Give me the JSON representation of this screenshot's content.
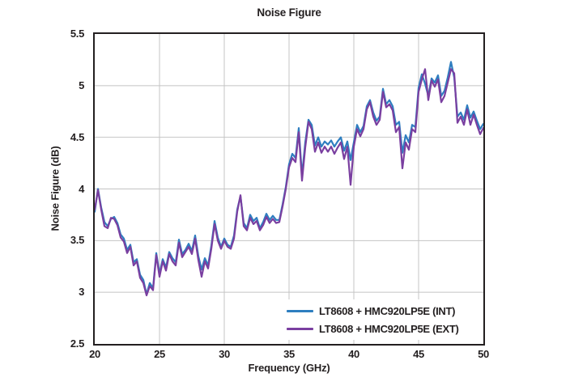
{
  "title": "Noise Figure",
  "colors": {
    "frame": "#231f20",
    "grid": "#c4c4c4",
    "text": "#231f20",
    "background": "#ffffff",
    "series_int": "#2e7ec0",
    "series_ext": "#7a3fa0"
  },
  "chart_data": {
    "type": "line",
    "title": "Noise Figure",
    "xlabel": "Frequency (GHz)",
    "ylabel": "Noise Figure (dB)",
    "xlim": [
      20,
      50
    ],
    "ylim": [
      2.5,
      5.5
    ],
    "xticks": [
      20,
      25,
      30,
      35,
      40,
      45,
      50
    ],
    "xtick_labels": [
      "20",
      "25",
      "30",
      "35",
      "40",
      "45",
      "50"
    ],
    "yticks": [
      2.5,
      3,
      3.5,
      4,
      4.5,
      5,
      5.5
    ],
    "ytick_labels": [
      "2.5",
      "3",
      "3.5",
      "4",
      "4.5",
      "5",
      "5.5"
    ],
    "grid": true,
    "legend_position": "bottom-right",
    "x_start": 20,
    "x_step": 0.25,
    "x_end": 50,
    "series": [
      {
        "name": "LT8608 + HMC920LP5E (INT)",
        "color": "#2e7ec0",
        "values": [
          3.78,
          4.0,
          3.82,
          3.68,
          3.64,
          3.71,
          3.73,
          3.67,
          3.56,
          3.52,
          3.41,
          3.46,
          3.29,
          3.32,
          3.17,
          3.12,
          2.98,
          3.09,
          3.04,
          3.38,
          3.18,
          3.32,
          3.24,
          3.39,
          3.33,
          3.29,
          3.51,
          3.37,
          3.41,
          3.47,
          3.4,
          3.55,
          3.35,
          3.22,
          3.33,
          3.26,
          3.45,
          3.69,
          3.53,
          3.44,
          3.52,
          3.46,
          3.44,
          3.55,
          3.8,
          3.93,
          3.67,
          3.62,
          3.75,
          3.69,
          3.72,
          3.62,
          3.68,
          3.76,
          3.7,
          3.74,
          3.7,
          3.7,
          3.85,
          4.02,
          4.24,
          4.34,
          4.3,
          4.59,
          4.13,
          4.45,
          4.67,
          4.62,
          4.42,
          4.5,
          4.41,
          4.46,
          4.43,
          4.47,
          4.41,
          4.46,
          4.5,
          4.37,
          4.46,
          4.28,
          4.45,
          4.62,
          4.55,
          4.61,
          4.8,
          4.86,
          4.74,
          4.66,
          4.7,
          4.97,
          4.82,
          4.86,
          4.8,
          4.62,
          4.65,
          4.35,
          4.52,
          4.45,
          4.62,
          4.6,
          4.98,
          5.11,
          5.02,
          4.9,
          5.07,
          5.03,
          5.1,
          4.9,
          4.95,
          5.08,
          5.23,
          5.08,
          4.7,
          4.74,
          4.67,
          4.81,
          4.69,
          4.75,
          4.66,
          4.58,
          4.63
        ]
      },
      {
        "name": "LT8608 + HMC920LP5E (EXT)",
        "color": "#7a3fa0",
        "values": [
          3.8,
          3.99,
          3.8,
          3.64,
          3.62,
          3.72,
          3.71,
          3.65,
          3.53,
          3.49,
          3.38,
          3.44,
          3.26,
          3.3,
          3.14,
          3.09,
          2.97,
          3.06,
          3.02,
          3.36,
          3.15,
          3.3,
          3.21,
          3.37,
          3.3,
          3.26,
          3.48,
          3.34,
          3.39,
          3.44,
          3.37,
          3.52,
          3.31,
          3.15,
          3.3,
          3.23,
          3.42,
          3.66,
          3.5,
          3.42,
          3.5,
          3.44,
          3.42,
          3.52,
          3.78,
          3.94,
          3.64,
          3.6,
          3.72,
          3.66,
          3.69,
          3.6,
          3.65,
          3.73,
          3.67,
          3.71,
          3.67,
          3.68,
          3.83,
          4.0,
          4.21,
          4.3,
          4.26,
          4.55,
          4.08,
          4.4,
          4.65,
          4.58,
          4.36,
          4.45,
          4.35,
          4.41,
          4.36,
          4.41,
          4.34,
          4.4,
          4.45,
          4.29,
          4.41,
          4.04,
          4.41,
          4.58,
          4.51,
          4.58,
          4.77,
          4.84,
          4.7,
          4.62,
          4.67,
          4.94,
          4.79,
          4.82,
          4.76,
          4.55,
          4.6,
          4.2,
          4.45,
          4.38,
          4.58,
          4.55,
          4.94,
          5.06,
          5.16,
          4.86,
          5.05,
          4.99,
          5.06,
          4.84,
          4.9,
          5.03,
          5.16,
          5.12,
          4.64,
          4.7,
          4.62,
          4.77,
          4.62,
          4.72,
          4.62,
          4.53,
          4.59
        ]
      }
    ]
  }
}
